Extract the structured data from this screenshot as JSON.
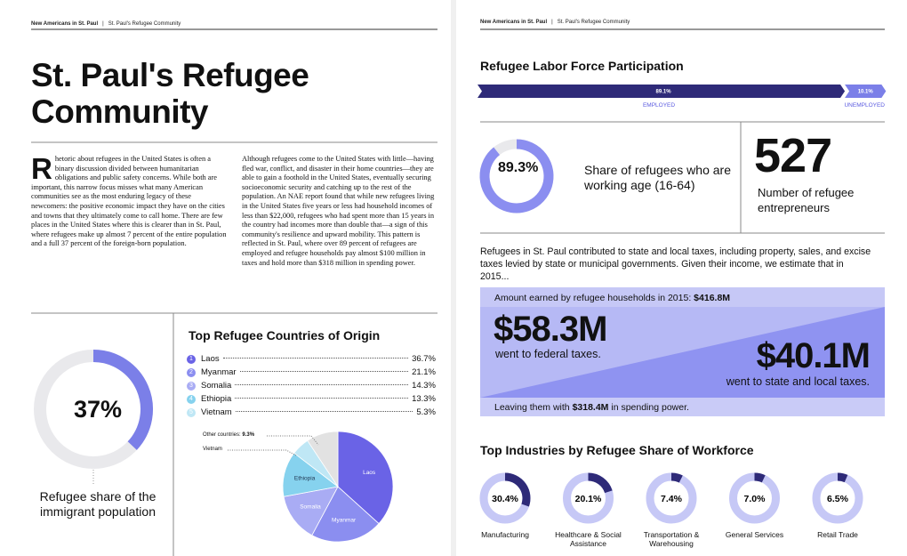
{
  "header": {
    "series": "New Americans in St. Paul",
    "separator": "|",
    "section": "St. Paul's Refugee Community"
  },
  "title": "St. Paul's Refugee Community",
  "body": [
    "Rhetoric about refugees in the United States is often a binary discussion divided between humanitarian obligations and public safety concerns. While both are important, this narrow focus misses what many American communities see as the most enduring legacy of these newcomers: the positive economic impact they have on the cities and towns that they ultimately come to call home. There are few places in the United States where this is clearer than in St. Paul, where refugees make up almost 7 percent of the entire population and a full 37 percent of the foreign-born population.",
    "Although refugees come to the United States with little—having fled war, conflict, and disaster in their home countries—they are able to gain a foothold in the United States, eventually securing socioeconomic security and catching up to the rest of the population. An NAE report found that while new refugees living in the United States five years or less had household incomes of less than $22,000, refugees who had spent more than 15 years in the country had incomes more than double that—a sign of this community's resilience and upward mobility. This pattern is reflected in St. Paul, where over 89 percent of refugees are employed and refugee households pay almost $100 million in taxes and hold more than $318 million in spending power."
  ],
  "immigrant_share": {
    "share": {
      "value": 37,
      "label": "37%"
    },
    "color": "#7b7fe8",
    "caption": "Refugee share of the immigrant population"
  },
  "countries": {
    "title": "Top Refugee Countries of Origin",
    "items": [
      {
        "rank": "1",
        "name": "Laos",
        "share": {
          "value": 36.7,
          "label": "36.7%"
        },
        "color": "#6a63e6"
      },
      {
        "rank": "2",
        "name": "Myanmar",
        "share": {
          "value": 21.1,
          "label": "21.1%"
        },
        "color": "#8b8ef0"
      },
      {
        "rank": "3",
        "name": "Somalia",
        "share": {
          "value": 14.3,
          "label": "14.3%"
        },
        "color": "#a9acf4"
      },
      {
        "rank": "4",
        "name": "Ethiopia",
        "share": {
          "value": 13.3,
          "label": "13.3%"
        },
        "color": "#86d2ee"
      },
      {
        "rank": "5",
        "name": "Vietnam",
        "share": {
          "value": 5.3,
          "label": "5.3%"
        },
        "color": "#bfe7f5"
      }
    ],
    "other": {
      "name": "Other countries:",
      "share": {
        "value": 9.3,
        "label": "9.3%"
      },
      "color": "#e2e2e2"
    }
  },
  "labor": {
    "title": "Refugee Labor Force Participation",
    "segments": [
      {
        "name": "EMPLOYED",
        "share": {
          "value": 89.1,
          "label": "89.1%"
        },
        "color": "#2e2a78"
      },
      {
        "name": "UNEMPLOYED",
        "share": {
          "value": 10.1,
          "label": "10.1%"
        },
        "color": "#7b7fe8"
      }
    ]
  },
  "working_age": {
    "share": {
      "value": 89.3,
      "label": "89.3%"
    },
    "color": "#8b8ef0",
    "text": "Share of refugees who are working age (16-64)"
  },
  "entrepreneurs": {
    "count": "527",
    "text": "Number of refugee entrepreneurs"
  },
  "taxes": {
    "intro": "Refugees in St. Paul contributed to state and local taxes, including property, sales, and excise taxes levied by state or municipal governments. Given their income, we estimate that in 2015...",
    "earned_label": "Amount earned by refugee households in 2015:",
    "earned": "$416.8M",
    "federal": {
      "amount": "$58.3M",
      "text": "went to federal taxes."
    },
    "state": {
      "amount": "$40.1M",
      "text": "went to state and local taxes."
    },
    "remaining_pre": "Leaving them with",
    "remaining": "$318.4M",
    "remaining_post": "in spending power."
  },
  "industries": {
    "title": "Top Industries by Refugee Share of Workforce",
    "color": "#2e2a78",
    "items": [
      {
        "name": "Manufacturing",
        "share": {
          "value": 30.4,
          "label": "30.4%"
        }
      },
      {
        "name": "Healthcare & Social Assistance",
        "share": {
          "value": 20.1,
          "label": "20.1%"
        }
      },
      {
        "name": "Transportation & Warehousing",
        "share": {
          "value": 7.4,
          "label": "7.4%"
        }
      },
      {
        "name": "General Services",
        "share": {
          "value": 7.0,
          "label": "7.0%"
        }
      },
      {
        "name": "Retail Trade",
        "share": {
          "value": 6.5,
          "label": "6.5%"
        }
      }
    ]
  }
}
